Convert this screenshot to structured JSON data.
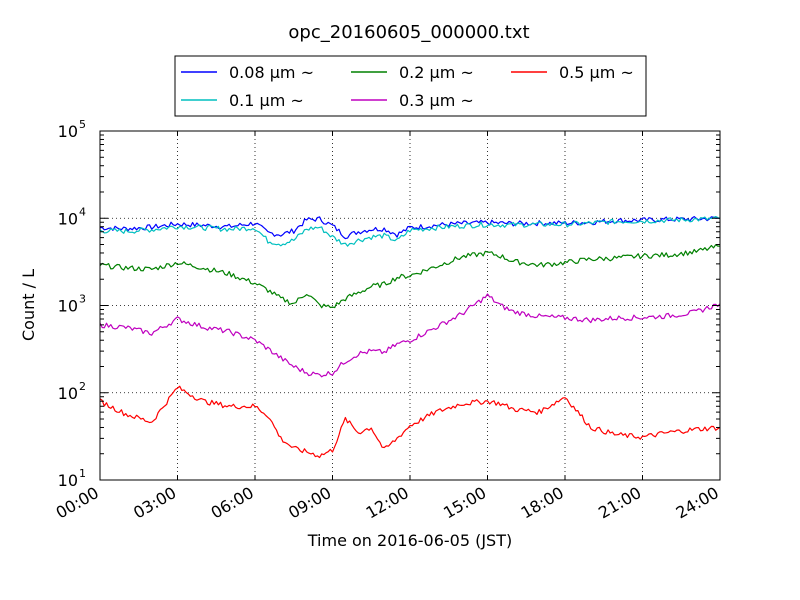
{
  "chart_data": {
    "type": "line",
    "title": "opc_20160605_000000.txt",
    "xlabel": "Time on 2016-06-05 (JST)",
    "ylabel": "Count / L",
    "yscale": "log",
    "ylim": [
      10,
      100000
    ],
    "xlim": [
      "00:00",
      "24:00"
    ],
    "x_ticks": [
      "00:00",
      "03:00",
      "06:00",
      "09:00",
      "12:00",
      "15:00",
      "18:00",
      "21:00",
      "24:00"
    ],
    "y_ticks": [
      {
        "value": 10,
        "base": "10",
        "exp": "1"
      },
      {
        "value": 100,
        "base": "10",
        "exp": "2"
      },
      {
        "value": 1000,
        "base": "10",
        "exp": "3"
      },
      {
        "value": 10000,
        "base": "10",
        "exp": "4"
      },
      {
        "value": 100000,
        "base": "10",
        "exp": "5"
      }
    ],
    "grid": true,
    "legend_position": "top",
    "x": [
      "00:00",
      "01:00",
      "02:00",
      "03:00",
      "04:00",
      "05:00",
      "06:00",
      "06:30",
      "07:00",
      "07:30",
      "08:00",
      "08:30",
      "09:00",
      "09:30",
      "10:00",
      "10:30",
      "11:00",
      "11:30",
      "12:00",
      "13:00",
      "14:00",
      "15:00",
      "15:30",
      "16:00",
      "17:00",
      "18:00",
      "19:00",
      "20:00",
      "21:00",
      "22:00",
      "23:00",
      "24:00"
    ],
    "series": [
      {
        "name": "0.08 μm ~",
        "color": "#0000ff",
        "values": [
          7800,
          7600,
          7900,
          8600,
          8300,
          8000,
          8800,
          6800,
          6500,
          7200,
          9600,
          9800,
          8200,
          6200,
          7000,
          7500,
          7600,
          6500,
          7800,
          8300,
          8700,
          8900,
          8800,
          8700,
          8800,
          8800,
          9000,
          9400,
          9500,
          9700,
          9800,
          10000
        ]
      },
      {
        "name": "0.1 μm ~",
        "color": "#00bfbf",
        "values": [
          7200,
          7100,
          7400,
          8100,
          7800,
          7500,
          7800,
          5500,
          5100,
          5600,
          7500,
          7900,
          6100,
          5000,
          5600,
          6100,
          6300,
          5500,
          7300,
          7800,
          8200,
          8500,
          8400,
          8400,
          8500,
          8500,
          8800,
          9200,
          9300,
          9500,
          9700,
          9900
        ]
      },
      {
        "name": "0.2 μm ~",
        "color": "#008000",
        "values": [
          2900,
          2700,
          2600,
          3100,
          2700,
          2300,
          1800,
          1500,
          1200,
          1050,
          1400,
          1000,
          950,
          1200,
          1400,
          1650,
          1750,
          2100,
          2200,
          2800,
          3600,
          4000,
          3700,
          3200,
          2900,
          3100,
          3400,
          3500,
          3700,
          3800,
          4100,
          4800
        ]
      },
      {
        "name": "0.3 μm ~",
        "color": "#bf00bf",
        "values": [
          600,
          560,
          480,
          700,
          570,
          500,
          400,
          320,
          250,
          200,
          170,
          160,
          170,
          230,
          280,
          300,
          290,
          360,
          400,
          560,
          800,
          1300,
          1000,
          850,
          750,
          720,
          680,
          720,
          730,
          760,
          830,
          1050
        ]
      },
      {
        "name": "0.5 μm ~",
        "color": "#ff0000",
        "values": [
          80,
          57,
          46,
          115,
          80,
          70,
          70,
          55,
          30,
          23,
          21,
          19,
          22,
          50,
          35,
          40,
          22,
          30,
          42,
          60,
          75,
          80,
          75,
          65,
          60,
          90,
          40,
          33,
          31,
          35,
          38,
          40
        ]
      }
    ]
  }
}
